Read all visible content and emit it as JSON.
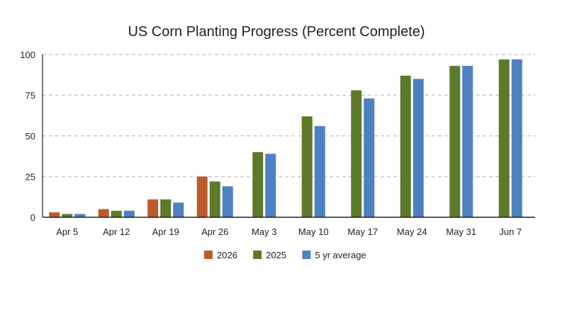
{
  "chart_data": {
    "type": "bar",
    "title": "US Corn Planting Progress (Percent Complete)",
    "xlabel": "",
    "ylabel": "",
    "ylim": [
      0,
      100
    ],
    "yticks": [
      0,
      25,
      50,
      75,
      100
    ],
    "grid": true,
    "legend_placement": "bottom",
    "categories": [
      "Apr 5",
      "Apr 12",
      "Apr 19",
      "Apr 26",
      "May 3",
      "May 10",
      "May 17",
      "May 24",
      "May 31",
      "Jun 7"
    ],
    "series": [
      {
        "name": "2026",
        "color": "#bd5a2a",
        "values": [
          3,
          5,
          11,
          25,
          null,
          null,
          null,
          null,
          null,
          null
        ]
      },
      {
        "name": "2025",
        "color": "#5c7a2a",
        "values": [
          2,
          4,
          11,
          22,
          40,
          62,
          78,
          87,
          93,
          97
        ]
      },
      {
        "name": "5 yr average",
        "color": "#4d81c1",
        "values": [
          2,
          4,
          9,
          19,
          39,
          56,
          73,
          85,
          93,
          97
        ]
      }
    ]
  }
}
